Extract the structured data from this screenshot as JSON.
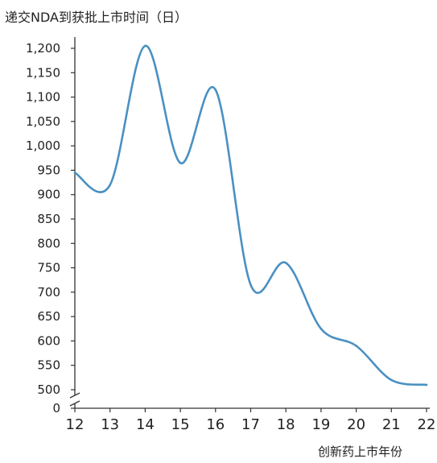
{
  "chart_data": {
    "type": "line",
    "title": "递交NDA到获批上市时间（日）",
    "xlabel": "创新药上市年份",
    "ylabel": "",
    "x": [
      12,
      13,
      14,
      15,
      16,
      17,
      18,
      19,
      20,
      21,
      22
    ],
    "x_tick_labels": [
      "12",
      "13",
      "14",
      "15",
      "16",
      "17",
      "18",
      "19",
      "20",
      "21",
      "22"
    ],
    "y_tick_values": [
      0,
      500,
      550,
      600,
      650,
      700,
      750,
      800,
      850,
      900,
      950,
      1000,
      1050,
      1100,
      1150,
      1200
    ],
    "y_tick_labels": [
      "0",
      "500",
      "550",
      "600",
      "650",
      "700",
      "750",
      "800",
      "850",
      "900",
      "950",
      "1,000",
      "1,050",
      "1,100",
      "1,150",
      "1,200"
    ],
    "axis_break": "between 0 and 500",
    "ylim": [
      500,
      1200
    ],
    "xlim": [
      12,
      22
    ],
    "grid": false,
    "legend": "none",
    "line_color": "#4a90c2",
    "series": [
      {
        "values": [
          945,
          920,
          1205,
          965,
          1115,
          715,
          760,
          625,
          590,
          520,
          510
        ]
      }
    ]
  }
}
